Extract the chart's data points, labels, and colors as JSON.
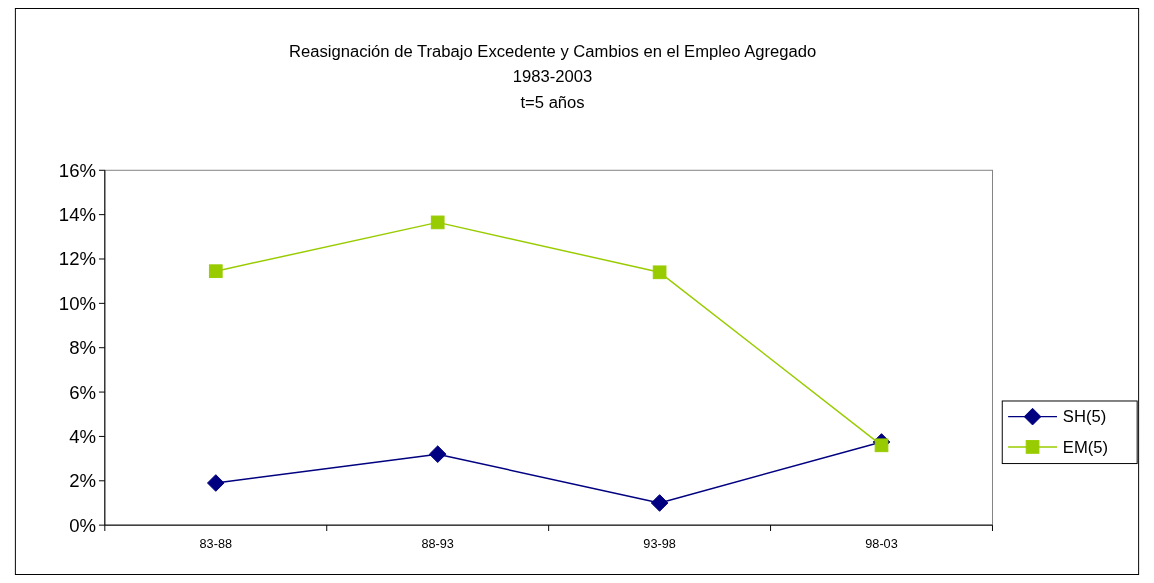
{
  "chart_data": {
    "type": "line",
    "title": "Reasignación de Trabajo Excedente y Cambios en el Empleo Agregado",
    "subtitle": "1983-2003\nt=5 años",
    "categories": [
      "83-88",
      "88-93",
      "93-98",
      "98-03"
    ],
    "series": [
      {
        "name": "SH(5)",
        "color": "#000080",
        "marker": "diamond",
        "values": [
          1.9,
          3.2,
          1.0,
          3.75
        ]
      },
      {
        "name": "EM(5)",
        "color": "#99cc00",
        "marker": "square",
        "values": [
          11.45,
          13.65,
          11.4,
          3.6
        ]
      }
    ],
    "ylim": [
      0,
      16
    ],
    "yticks": [
      {
        "value": 0,
        "label": "0%"
      },
      {
        "value": 2,
        "label": "2%"
      },
      {
        "value": 4,
        "label": "4%"
      },
      {
        "value": 6,
        "label": "6%"
      },
      {
        "value": 8,
        "label": "8%"
      },
      {
        "value": 10,
        "label": "10%"
      },
      {
        "value": 12,
        "label": "12%"
      },
      {
        "value": 14,
        "label": "14%"
      },
      {
        "value": 16,
        "label": "16%"
      }
    ],
    "grid": false,
    "legend": "right",
    "line_style": "solid"
  }
}
